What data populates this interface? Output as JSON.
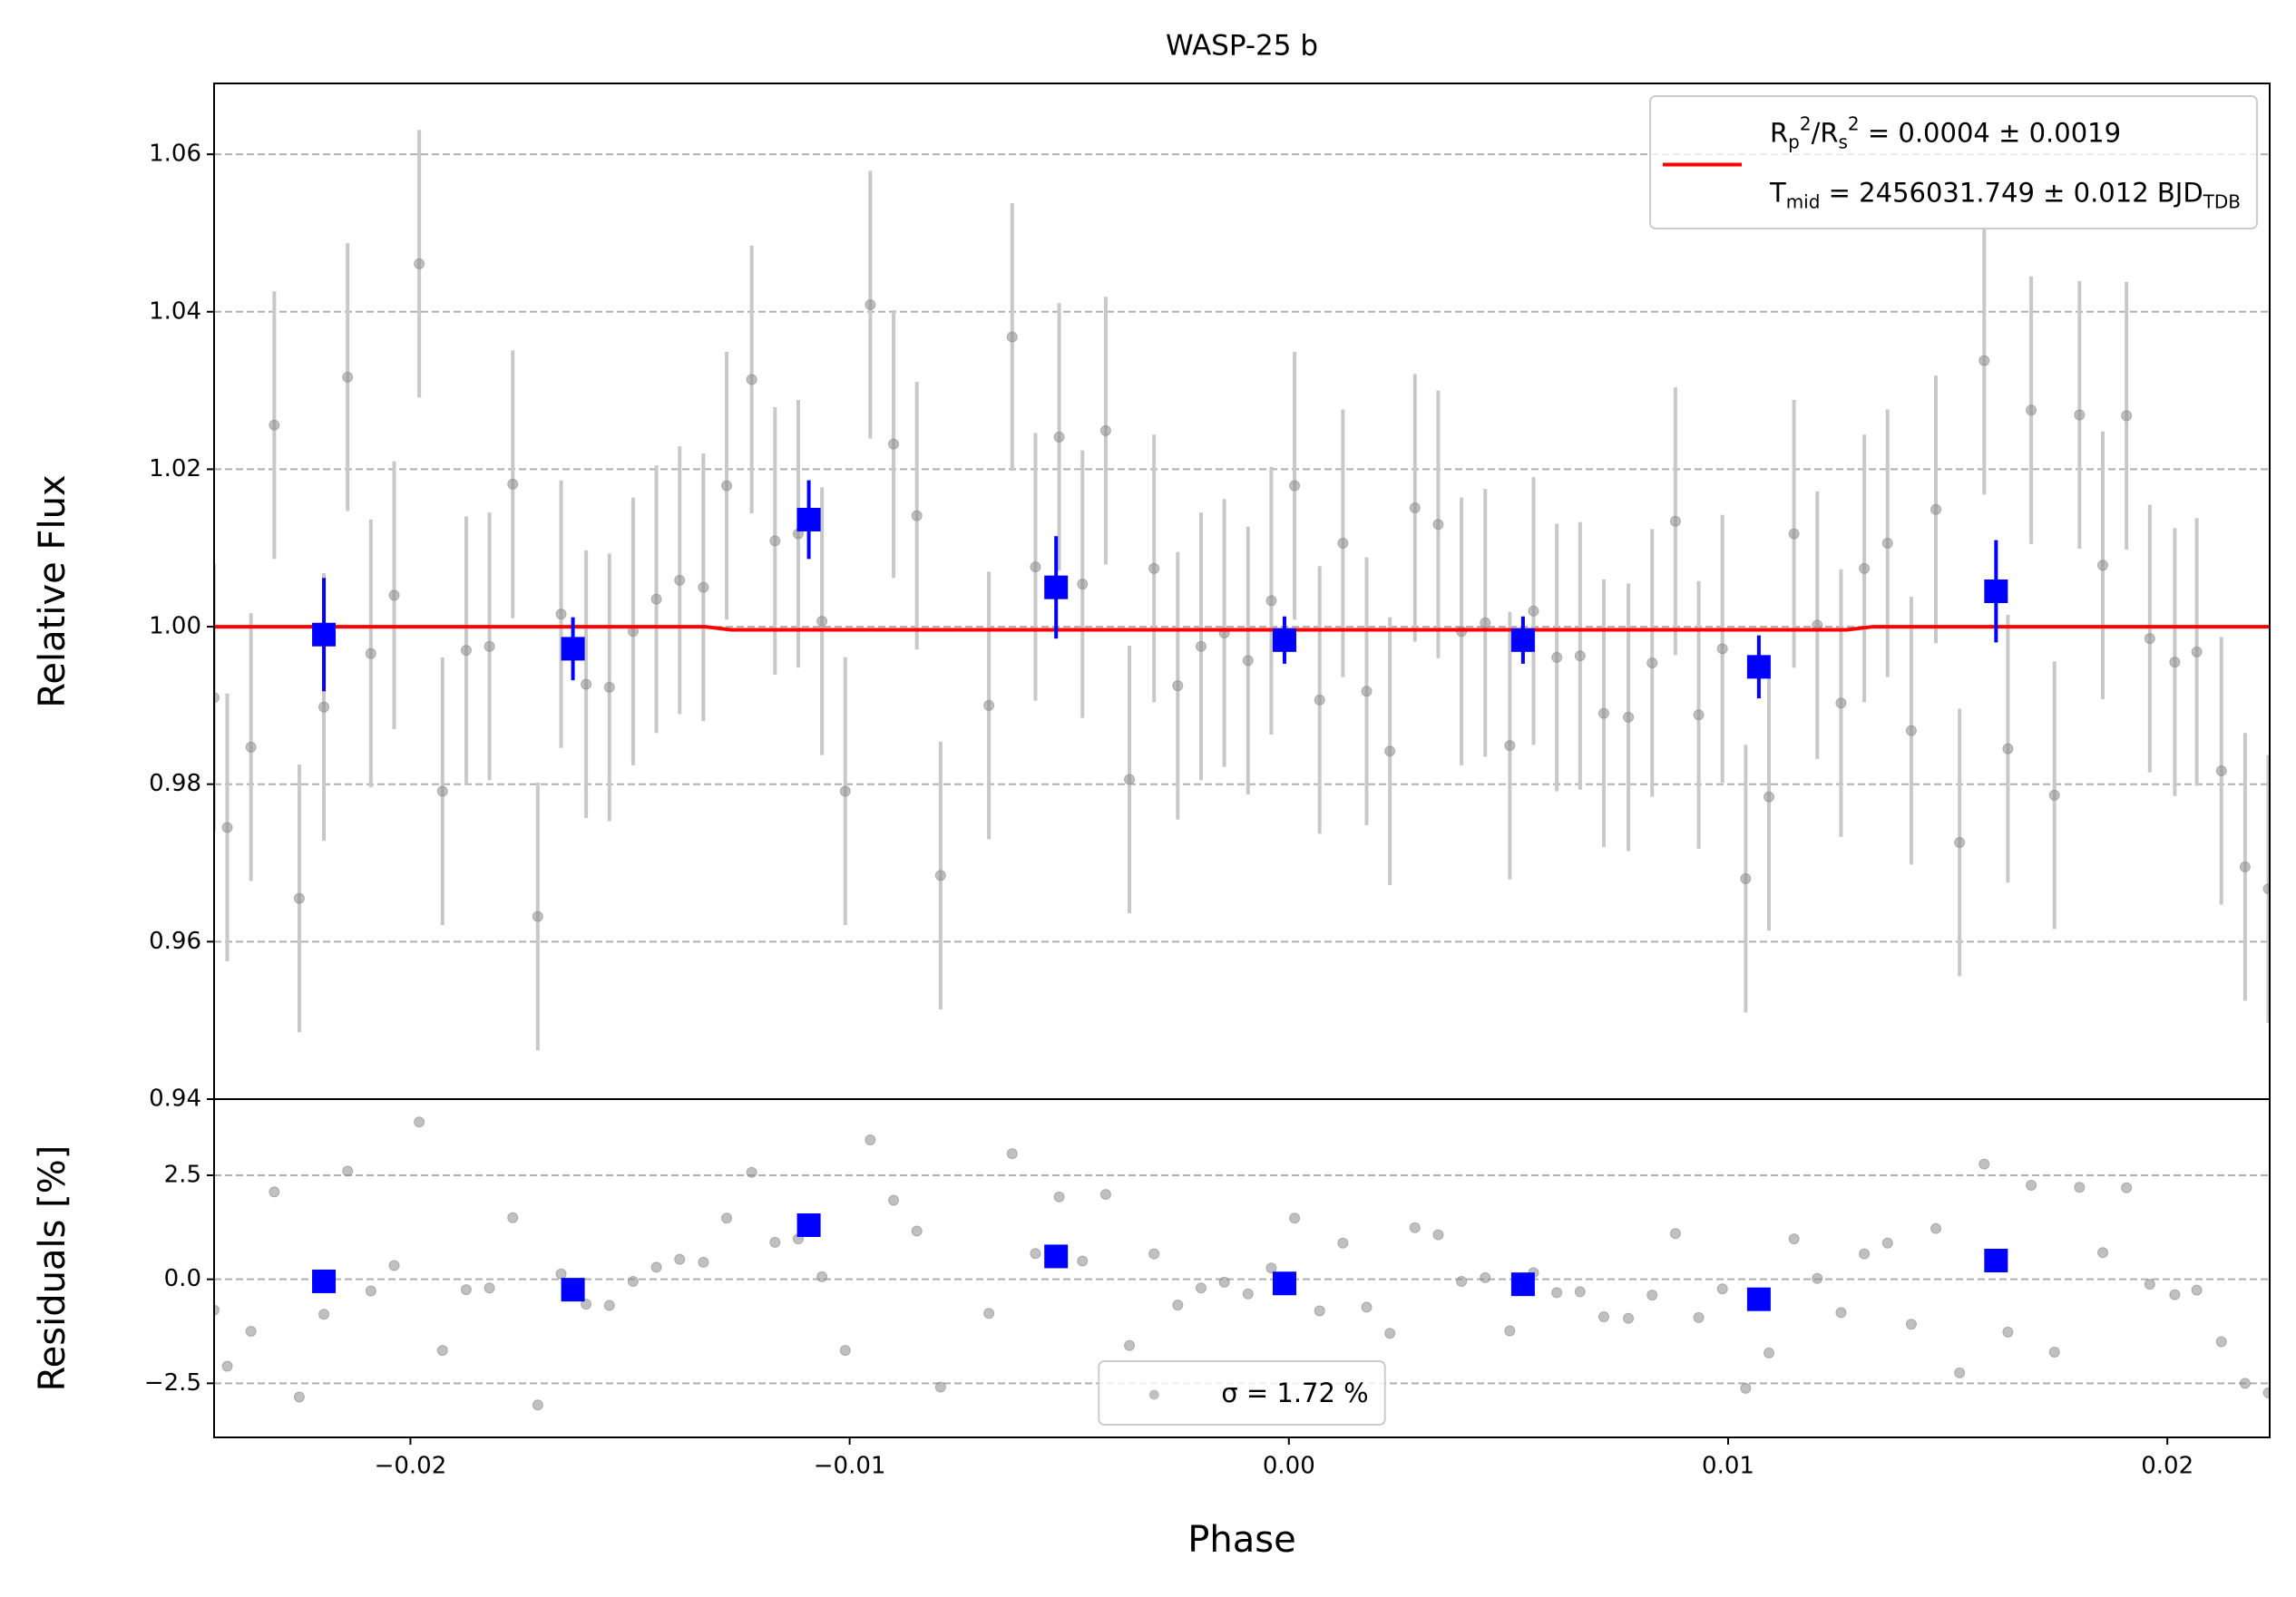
{
  "chart_data": [
    {
      "type": "scatter",
      "title": "WASP-25 b",
      "ylabel": "Relative Flux",
      "xlim": [
        -0.02447,
        0.02233
      ],
      "ylim": [
        0.94,
        1.069
      ],
      "yticks": [
        0.94,
        0.96,
        0.98,
        {
          "value": 1.0,
          "label": "1.00"
        },
        1.02,
        1.04,
        1.06
      ],
      "grid": true,
      "legend": "upper right",
      "series": [
        {
          "mark": "circle",
          "color": "#8c8c8c",
          "error_color": "#c8c8c8",
          "error": 0.017,
          "x": [
            -0.02447,
            -0.02417,
            -0.02363,
            -0.0231,
            -0.02253,
            -0.02197,
            -0.02143,
            -0.0209,
            -0.02037,
            -0.0198,
            -0.01927,
            -0.01873,
            -0.0182,
            -0.01767,
            -0.0171,
            -0.01657,
            -0.016,
            -0.01547,
            -0.01493,
            -0.0144,
            -0.01387,
            -0.01333,
            -0.0128,
            -0.01223,
            -0.0117,
            -0.01117,
            -0.01063,
            -0.0101,
            -0.00953,
            -0.009,
            -0.00847,
            -0.00793,
            -0.00683,
            -0.0063,
            -0.00577,
            -0.00523,
            -0.0047,
            -0.00417,
            -0.00363,
            -0.00307,
            -0.00253,
            -0.002,
            -0.00147,
            -0.00093,
            -0.0004,
            0.00013,
            0.0007,
            0.00123,
            0.00177,
            0.0023,
            0.00287,
            0.0034,
            0.00393,
            0.00447,
            0.00503,
            0.00557,
            0.0061,
            0.00663,
            0.00717,
            0.00773,
            0.00827,
            0.0088,
            0.00933,
            0.00987,
            0.0104,
            0.01093,
            0.0115,
            0.01203,
            0.01257,
            0.0131,
            0.01363,
            0.01417,
            0.01473,
            0.01527,
            0.01583,
            0.01637,
            0.0169,
            0.01743,
            0.018,
            0.01853,
            0.01907,
            0.0196,
            0.02017,
            0.02067,
            0.02123,
            0.02177,
            0.0223
          ],
          "values": [
            0.991,
            0.9745,
            0.9847,
            1.0256,
            0.9655,
            0.9898,
            1.0317,
            0.9966,
            1.004,
            1.0461,
            0.9791,
            0.997,
            0.9975,
            1.0181,
            0.9632,
            1.0016,
            0.9927,
            0.9923,
            0.9994,
            1.0035,
            1.0059,
            1.005,
            1.0179,
            1.0314,
            1.0109,
            1.0118,
            1.0007,
            0.9791,
            1.0409,
            1.0232,
            1.0141,
            0.9684,
            0.99,
            1.0368,
            1.0076,
            1.0241,
            1.0054,
            1.0249,
            0.9806,
            1.0074,
            0.9925,
            0.9975,
            0.9992,
            0.9957,
            1.0033,
            1.0179,
            0.9907,
            1.0106,
            0.9918,
            0.9842,
            1.0151,
            1.013,
            0.9994,
            1.0005,
            0.9849,
            1.002,
            0.9961,
            0.9963,
            0.989,
            0.9885,
            0.9954,
            1.0134,
            0.9888,
            0.9972,
            0.968,
            0.9784,
            1.0118,
            1.0002,
            0.9903,
            1.0074,
            1.0106,
            0.9868,
            1.0149,
            0.9726,
            1.0338,
            0.9845,
            1.0275,
            0.9786,
            1.0269,
            1.0078,
            1.0268,
            0.9985,
            0.9955,
            0.9968,
            0.9817,
            0.9695,
            0.9667
          ]
        },
        {
          "mark": "line",
          "color": "#ff0000",
          "name_parts": [
            [
              {
                "text": "R"
              },
              {
                "text": "p",
                "pos": "sub"
              },
              {
                "text": "2",
                "pos": "sup"
              },
              {
                "text": "/R"
              },
              {
                "text": "s",
                "pos": "sub"
              },
              {
                "text": "2",
                "pos": "sup"
              },
              {
                "text": " = 0.0004 ± 0.0019"
              }
            ],
            [
              {
                "text": "T"
              },
              {
                "text": "mid",
                "pos": "sub"
              },
              {
                "text": " = 2456031.749 ± 0.012 BJD"
              },
              {
                "text": "TDB",
                "pos": "sub"
              }
            ]
          ],
          "x": [
            -0.02447,
            -0.0133,
            -0.0127,
            0.0127,
            0.0133,
            0.02233
          ],
          "values": [
            1.0,
            1.0,
            0.9996,
            0.9996,
            1.0,
            1.0
          ]
        },
        {
          "mark": "square",
          "color": "#0000ff",
          "x": [
            -0.02197,
            -0.0163,
            -0.01093,
            -0.0053,
            -0.0001,
            0.00533,
            0.0107,
            0.0161
          ],
          "values": [
            0.999,
            0.9972,
            1.0136,
            1.005,
            0.9983,
            0.9983,
            0.9949,
            1.0045
          ],
          "errors": [
            0.0072,
            0.004,
            0.005,
            0.0065,
            0.003,
            0.003,
            0.004,
            0.0065
          ]
        }
      ]
    },
    {
      "type": "scatter",
      "xlabel": "Phase",
      "ylabel": "Residuals [%]",
      "xlim": [
        -0.02447,
        0.02233
      ],
      "ylim": [
        -3.8,
        4.33
      ],
      "xticks": [
        {
          "value": -0.02,
          "label": "−0.02"
        },
        {
          "value": -0.01,
          "label": "−0.01"
        },
        {
          "value": 0,
          "label": "0.00"
        },
        0.01,
        0.02
      ],
      "yticks": [
        {
          "value": -2.5,
          "label": "−2.5"
        },
        {
          "value": 0,
          "label": "0.0"
        },
        2.5
      ],
      "grid": true,
      "legend": "lower center",
      "series": [
        {
          "mark": "circle",
          "color": "#8c8c8c",
          "name": "σ = 1.72 %",
          "x": [
            -0.02447,
            -0.02417,
            -0.02363,
            -0.0231,
            -0.02253,
            -0.02197,
            -0.02143,
            -0.0209,
            -0.02037,
            -0.0198,
            -0.01927,
            -0.01873,
            -0.0182,
            -0.01767,
            -0.0171,
            -0.01657,
            -0.016,
            -0.01547,
            -0.01493,
            -0.0144,
            -0.01387,
            -0.01333,
            -0.0128,
            -0.01223,
            -0.0117,
            -0.01117,
            -0.01063,
            -0.0101,
            -0.00953,
            -0.009,
            -0.00847,
            -0.00793,
            -0.00683,
            -0.0063,
            -0.00577,
            -0.00523,
            -0.0047,
            -0.00417,
            -0.00363,
            -0.00307,
            -0.00253,
            -0.002,
            -0.00147,
            -0.00093,
            -0.0004,
            0.00013,
            0.0007,
            0.00123,
            0.00177,
            0.0023,
            0.00287,
            0.0034,
            0.00393,
            0.00447,
            0.00503,
            0.00557,
            0.0061,
            0.00663,
            0.00717,
            0.00773,
            0.00827,
            0.0088,
            0.00933,
            0.00987,
            0.0104,
            0.01093,
            0.0115,
            0.01203,
            0.01257,
            0.0131,
            0.01363,
            0.01417,
            0.01473,
            0.01527,
            0.01583,
            0.01637,
            0.0169,
            0.01743,
            0.018,
            0.01853,
            0.01907,
            0.0196,
            0.02017,
            0.02067,
            0.02123,
            0.02177,
            0.0223
          ],
          "values": [
            -0.74,
            -2.09,
            -1.25,
            2.1,
            -2.83,
            -0.84,
            2.6,
            -0.28,
            0.33,
            3.78,
            -1.71,
            -0.25,
            -0.21,
            1.48,
            -3.02,
            0.13,
            -0.6,
            -0.63,
            -0.05,
            0.29,
            0.48,
            0.41,
            1.47,
            2.57,
            0.89,
            0.97,
            0.06,
            -1.71,
            3.35,
            1.9,
            1.16,
            -2.59,
            -0.82,
            3.02,
            0.62,
            1.98,
            0.44,
            2.04,
            -1.59,
            0.61,
            -0.62,
            -0.21,
            -0.07,
            -0.35,
            0.27,
            1.47,
            -0.76,
            0.87,
            -0.67,
            -1.3,
            1.24,
            1.07,
            -0.05,
            0.04,
            -1.24,
            0.16,
            -0.32,
            -0.3,
            -0.9,
            -0.94,
            -0.38,
            1.1,
            -0.92,
            -0.23,
            -2.62,
            -1.77,
            0.97,
            0.02,
            -0.8,
            0.61,
            0.87,
            -1.08,
            1.22,
            -2.25,
            2.77,
            -1.27,
            2.26,
            -1.75,
            2.21,
            0.64,
            2.2,
            -0.12,
            -0.37,
            -0.26,
            -1.5,
            -2.5,
            -2.73
          ]
        },
        {
          "mark": "square",
          "color": "#0000ff",
          "x": [
            -0.02197,
            -0.0163,
            -0.01093,
            -0.0053,
            -0.0001,
            0.00533,
            0.0107,
            0.0161
          ],
          "values": [
            -0.05,
            -0.25,
            1.3,
            0.55,
            -0.1,
            -0.12,
            -0.48,
            0.45
          ]
        }
      ]
    }
  ]
}
